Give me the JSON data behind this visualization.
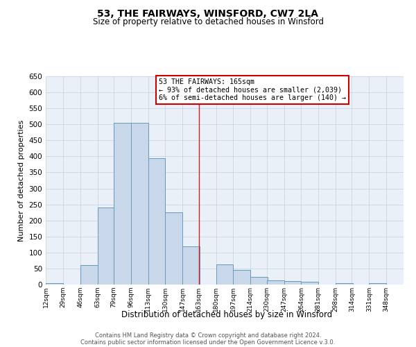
{
  "title": "53, THE FAIRWAYS, WINSFORD, CW7 2LA",
  "subtitle": "Size of property relative to detached houses in Winsford",
  "xlabel": "Distribution of detached houses by size in Winsford",
  "ylabel": "Number of detached properties",
  "bar_left_edges": [
    12,
    29,
    46,
    63,
    79,
    96,
    113,
    130,
    147,
    163,
    180,
    197,
    214,
    230,
    247,
    264,
    281,
    298,
    314,
    331
  ],
  "bar_widths": [
    17,
    17,
    17,
    17,
    17,
    17,
    17,
    17,
    17,
    17,
    17,
    17,
    17,
    17,
    17,
    17,
    17,
    17,
    17,
    17
  ],
  "bar_heights": [
    5,
    0,
    60,
    240,
    505,
    505,
    395,
    225,
    120,
    0,
    62,
    45,
    23,
    12,
    10,
    8,
    0,
    5,
    0,
    5
  ],
  "bar_color": "#c8d8ea",
  "bar_edge_color": "#6699bb",
  "xtick_labels": [
    "12sqm",
    "29sqm",
    "46sqm",
    "63sqm",
    "79sqm",
    "96sqm",
    "113sqm",
    "130sqm",
    "147sqm",
    "163sqm",
    "180sqm",
    "197sqm",
    "214sqm",
    "230sqm",
    "247sqm",
    "264sqm",
    "281sqm",
    "298sqm",
    "314sqm",
    "331sqm",
    "348sqm"
  ],
  "xtick_positions": [
    12,
    29,
    46,
    63,
    79,
    96,
    113,
    130,
    147,
    163,
    180,
    197,
    214,
    230,
    247,
    264,
    281,
    298,
    314,
    331,
    348
  ],
  "xlim_left": 12,
  "xlim_right": 365,
  "ylim": [
    0,
    650
  ],
  "yticks": [
    0,
    50,
    100,
    150,
    200,
    250,
    300,
    350,
    400,
    450,
    500,
    550,
    600,
    650
  ],
  "vline_x": 163,
  "vline_color": "#cc2222",
  "annotation_title": "53 THE FAIRWAYS: 165sqm",
  "annotation_line1": "← 93% of detached houses are smaller (2,039)",
  "annotation_line2": "6% of semi-detached houses are larger (140) →",
  "annotation_box_facecolor": "#ffffff",
  "annotation_box_edgecolor": "#cc0000",
  "footer_line1": "Contains HM Land Registry data © Crown copyright and database right 2024.",
  "footer_line2": "Contains public sector information licensed under the Open Government Licence v.3.0.",
  "bg_color": "#ffffff",
  "ax_bg_color": "#eaf0f8",
  "grid_color": "#c5cfdc"
}
